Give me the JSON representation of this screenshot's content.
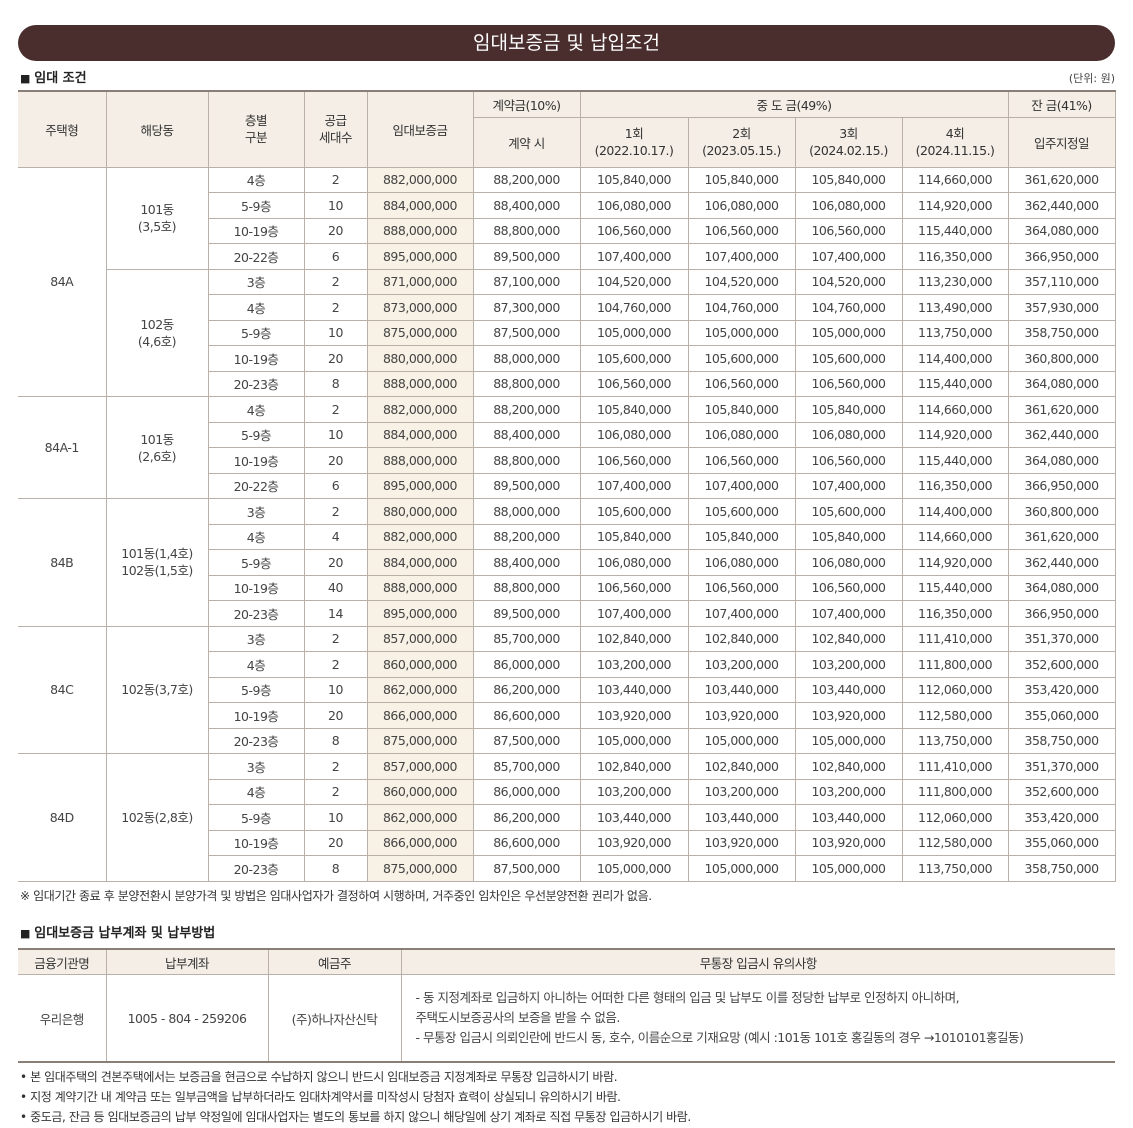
{
  "title": "임대보증금 및 납입조건",
  "section1": "임대 조건",
  "unit": "(단위: 원)",
  "headers": {
    "type": "주택형",
    "dong": "해당동",
    "floor": "층별\n구분",
    "units": "공급\n세대수",
    "deposit": "임대보증금",
    "contract": "계약금(10%)",
    "contract_sub": "계약 시",
    "middle": "중 도 금(49%)",
    "m1": "1회\n(2022.10.17.)",
    "m2": "2회\n(2023.05.15.)",
    "m3": "3회\n(2024.02.15.)",
    "m4": "4회\n(2024.11.15.)",
    "balance": "잔 금(41%)",
    "balance_sub": "입주지정일"
  },
  "groups": [
    {
      "type": "84A",
      "dongs": [
        {
          "dong": "101동\n(3,5호)",
          "rows": [
            [
              "4층",
              "2",
              "882,000,000",
              "88,200,000",
              "105,840,000",
              "105,840,000",
              "105,840,000",
              "114,660,000",
              "361,620,000"
            ],
            [
              "5-9층",
              "10",
              "884,000,000",
              "88,400,000",
              "106,080,000",
              "106,080,000",
              "106,080,000",
              "114,920,000",
              "362,440,000"
            ],
            [
              "10-19층",
              "20",
              "888,000,000",
              "88,800,000",
              "106,560,000",
              "106,560,000",
              "106,560,000",
              "115,440,000",
              "364,080,000"
            ],
            [
              "20-22층",
              "6",
              "895,000,000",
              "89,500,000",
              "107,400,000",
              "107,400,000",
              "107,400,000",
              "116,350,000",
              "366,950,000"
            ]
          ]
        },
        {
          "dong": "102동\n(4,6호)",
          "rows": [
            [
              "3층",
              "2",
              "871,000,000",
              "87,100,000",
              "104,520,000",
              "104,520,000",
              "104,520,000",
              "113,230,000",
              "357,110,000"
            ],
            [
              "4층",
              "2",
              "873,000,000",
              "87,300,000",
              "104,760,000",
              "104,760,000",
              "104,760,000",
              "113,490,000",
              "357,930,000"
            ],
            [
              "5-9층",
              "10",
              "875,000,000",
              "87,500,000",
              "105,000,000",
              "105,000,000",
              "105,000,000",
              "113,750,000",
              "358,750,000"
            ],
            [
              "10-19층",
              "20",
              "880,000,000",
              "88,000,000",
              "105,600,000",
              "105,600,000",
              "105,600,000",
              "114,400,000",
              "360,800,000"
            ],
            [
              "20-23층",
              "8",
              "888,000,000",
              "88,800,000",
              "106,560,000",
              "106,560,000",
              "106,560,000",
              "115,440,000",
              "364,080,000"
            ]
          ]
        }
      ]
    },
    {
      "type": "84A-1",
      "dongs": [
        {
          "dong": "101동\n(2,6호)",
          "rows": [
            [
              "4층",
              "2",
              "882,000,000",
              "88,200,000",
              "105,840,000",
              "105,840,000",
              "105,840,000",
              "114,660,000",
              "361,620,000"
            ],
            [
              "5-9층",
              "10",
              "884,000,000",
              "88,400,000",
              "106,080,000",
              "106,080,000",
              "106,080,000",
              "114,920,000",
              "362,440,000"
            ],
            [
              "10-19층",
              "20",
              "888,000,000",
              "88,800,000",
              "106,560,000",
              "106,560,000",
              "106,560,000",
              "115,440,000",
              "364,080,000"
            ],
            [
              "20-22층",
              "6",
              "895,000,000",
              "89,500,000",
              "107,400,000",
              "107,400,000",
              "107,400,000",
              "116,350,000",
              "366,950,000"
            ]
          ]
        }
      ]
    },
    {
      "type": "84B",
      "dongs": [
        {
          "dong": "101동(1,4호)\n102동(1,5호)",
          "rows": [
            [
              "3층",
              "2",
              "880,000,000",
              "88,000,000",
              "105,600,000",
              "105,600,000",
              "105,600,000",
              "114,400,000",
              "360,800,000"
            ],
            [
              "4층",
              "4",
              "882,000,000",
              "88,200,000",
              "105,840,000",
              "105,840,000",
              "105,840,000",
              "114,660,000",
              "361,620,000"
            ],
            [
              "5-9층",
              "20",
              "884,000,000",
              "88,400,000",
              "106,080,000",
              "106,080,000",
              "106,080,000",
              "114,920,000",
              "362,440,000"
            ],
            [
              "10-19층",
              "40",
              "888,000,000",
              "88,800,000",
              "106,560,000",
              "106,560,000",
              "106,560,000",
              "115,440,000",
              "364,080,000"
            ],
            [
              "20-23층",
              "14",
              "895,000,000",
              "89,500,000",
              "107,400,000",
              "107,400,000",
              "107,400,000",
              "116,350,000",
              "366,950,000"
            ]
          ]
        }
      ]
    },
    {
      "type": "84C",
      "dongs": [
        {
          "dong": "102동(3,7호)",
          "rows": [
            [
              "3층",
              "2",
              "857,000,000",
              "85,700,000",
              "102,840,000",
              "102,840,000",
              "102,840,000",
              "111,410,000",
              "351,370,000"
            ],
            [
              "4층",
              "2",
              "860,000,000",
              "86,000,000",
              "103,200,000",
              "103,200,000",
              "103,200,000",
              "111,800,000",
              "352,600,000"
            ],
            [
              "5-9층",
              "10",
              "862,000,000",
              "86,200,000",
              "103,440,000",
              "103,440,000",
              "103,440,000",
              "112,060,000",
              "353,420,000"
            ],
            [
              "10-19층",
              "20",
              "866,000,000",
              "86,600,000",
              "103,920,000",
              "103,920,000",
              "103,920,000",
              "112,580,000",
              "355,060,000"
            ],
            [
              "20-23층",
              "8",
              "875,000,000",
              "87,500,000",
              "105,000,000",
              "105,000,000",
              "105,000,000",
              "113,750,000",
              "358,750,000"
            ]
          ]
        }
      ]
    },
    {
      "type": "84D",
      "dongs": [
        {
          "dong": "102동(2,8호)",
          "rows": [
            [
              "3층",
              "2",
              "857,000,000",
              "85,700,000",
              "102,840,000",
              "102,840,000",
              "102,840,000",
              "111,410,000",
              "351,370,000"
            ],
            [
              "4층",
              "2",
              "860,000,000",
              "86,000,000",
              "103,200,000",
              "103,200,000",
              "103,200,000",
              "111,800,000",
              "352,600,000"
            ],
            [
              "5-9층",
              "10",
              "862,000,000",
              "86,200,000",
              "103,440,000",
              "103,440,000",
              "103,440,000",
              "112,060,000",
              "353,420,000"
            ],
            [
              "10-19층",
              "20",
              "866,000,000",
              "86,600,000",
              "103,920,000",
              "103,920,000",
              "103,920,000",
              "112,580,000",
              "355,060,000"
            ],
            [
              "20-23층",
              "8",
              "875,000,000",
              "87,500,000",
              "105,000,000",
              "105,000,000",
              "105,000,000",
              "113,750,000",
              "358,750,000"
            ]
          ]
        }
      ]
    }
  ],
  "footnote": "※ 임대기간 종료 후 분양전환시 분양가격 및 방법은 임대사업자가 결정하여 시행하며, 거주중인 임차인은 우선분양전환 권리가 없음.",
  "section2": "임대보증금 납부계좌 및 납부방법",
  "pay": {
    "headers": [
      "금융기관명",
      "납부계좌",
      "예금주",
      "무통장 입금시 유의사항"
    ],
    "bank": "우리은행",
    "account": "1005 - 804 - 259206",
    "holder": "(주)하나자산신탁",
    "cautions": "-  동 지정계좌로 입금하지 아니하는 어떠한 다른 형태의 입금 및 납부도 이를 정당한 납부로 인정하지 아니하며,\n    주택도시보증공사의 보증을 받을 수 없음.\n-  무통장 입금시 의뢰인란에 반드시 동, 호수, 이름순으로 기재요망 (예시 :101동 101호 홍길동의 경우 →1010101홍길동)"
  },
  "notes": [
    "• 본 임대주택의 견본주택에서는 보증금을 현금으로 수납하지 않으니 반드시 임대보증금 지정계좌로 무통장 입금하시기 바람.",
    "• 지정 계약기간 내 계약금 또는 일부금액을 납부하더라도 임대차계약서를 미작성시 당첨자 효력이 상실되니 유의하시기 바람.",
    "• 중도금, 잔금 등 임대보증금의 납부 약정일에 임대사업자는 별도의 통보를 하지 않으니 해당일에 상기 계좌로 직접 무통장 입금하시기 바람."
  ]
}
